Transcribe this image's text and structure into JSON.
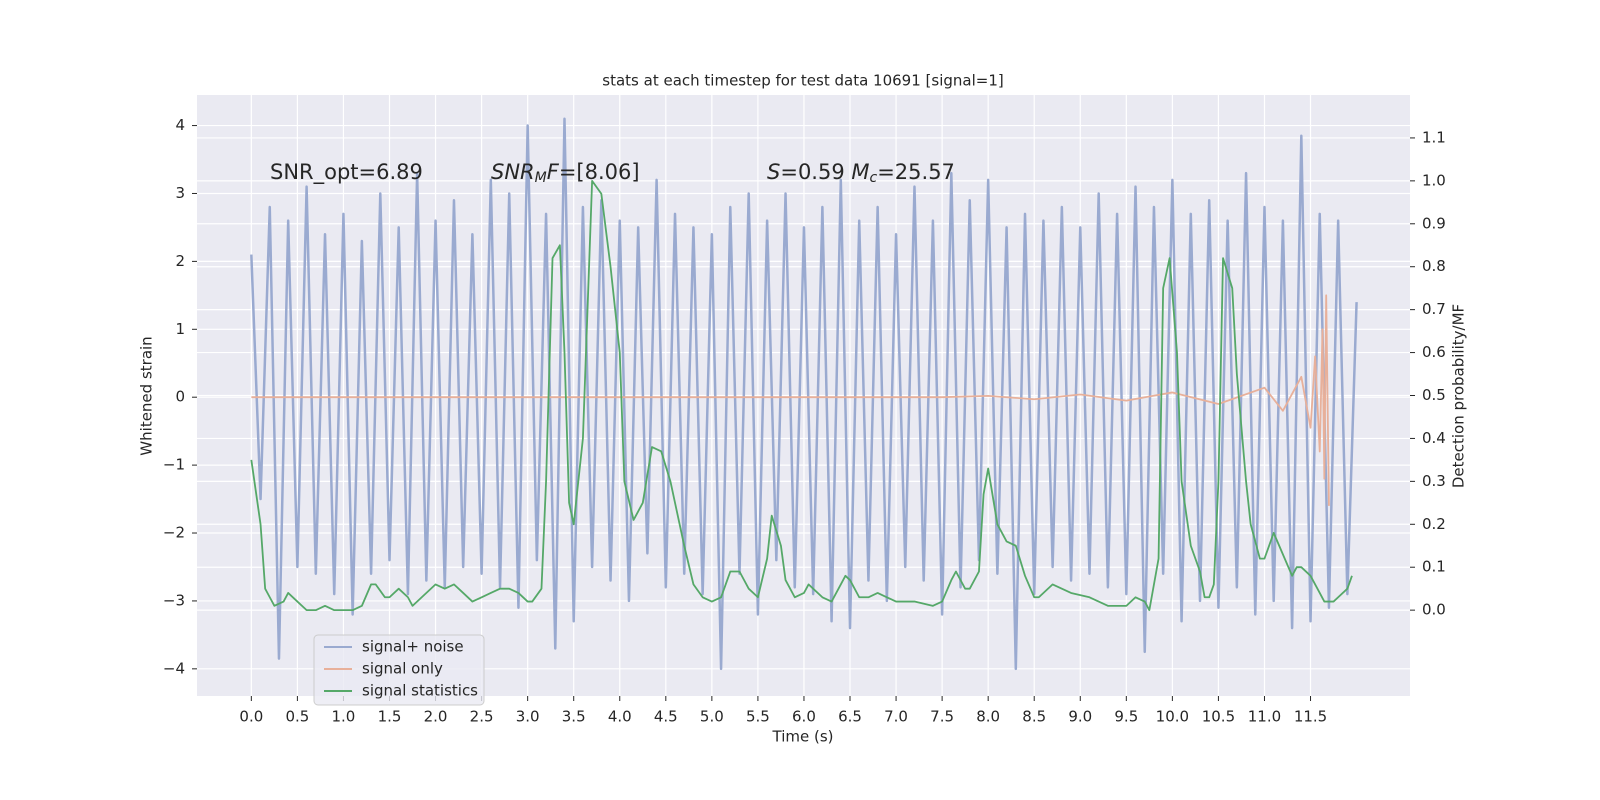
{
  "chart_data": {
    "type": "line",
    "title": "stats at each timestep for test data 10691 [signal=1]",
    "xlabel": "Time (s)",
    "ylabel": "Whitened strain",
    "y2label": "Detection probability/MF",
    "annotations": [
      [
        {
          "text": "SNR_opt=6.89"
        }
      ],
      [
        {
          "text": "SNR",
          "italic": true
        },
        {
          "text": "M",
          "italic": true,
          "sub": true
        },
        {
          "text": "F",
          "italic": true
        },
        {
          "text": "=[8.06]"
        }
      ],
      [
        {
          "text": "S",
          "italic": true
        },
        {
          "text": "=0.59   "
        },
        {
          "text": "M",
          "italic": true
        },
        {
          "text": "c",
          "italic": true,
          "sub": true
        },
        {
          "text": "=25.57"
        }
      ]
    ],
    "xlim": [
      -0.59,
      12.58
    ],
    "ylim": [
      -4.4,
      4.45
    ],
    "y2lim": [
      -0.2,
      1.2
    ],
    "xticks": [
      {
        "value": 0,
        "label": "0.0"
      },
      0.5,
      {
        "value": 1,
        "label": "1.0"
      },
      1.5,
      {
        "value": 2,
        "label": "2.0"
      },
      2.5,
      {
        "value": 3,
        "label": "3.0"
      },
      3.5,
      {
        "value": 4,
        "label": "4.0"
      },
      4.5,
      {
        "value": 5,
        "label": "5.0"
      },
      5.5,
      {
        "value": 6,
        "label": "6.0"
      },
      6.5,
      {
        "value": 7,
        "label": "7.0"
      },
      7.5,
      {
        "value": 8,
        "label": "8.0"
      },
      8.5,
      {
        "value": 9,
        "label": "9.0"
      },
      9.5,
      {
        "value": 10,
        "label": "10.0"
      },
      10.5,
      {
        "value": 11,
        "label": "11.0"
      },
      11.5
    ],
    "yticks": [
      {
        "value": -4,
        "label": "−4"
      },
      {
        "value": -3,
        "label": "−3"
      },
      {
        "value": -2,
        "label": "−2"
      },
      {
        "value": -1,
        "label": "−1"
      },
      0,
      1,
      2,
      3,
      4
    ],
    "y2ticks": [
      {
        "value": 0,
        "label": "0.0"
      },
      0.1,
      0.2,
      0.3,
      0.4,
      0.5,
      0.6,
      0.7,
      0.8,
      0.9,
      {
        "value": 1,
        "label": "1.0"
      },
      1.1
    ],
    "grid": true,
    "legend": "lower left",
    "series": [
      {
        "name": "signal+ noise",
        "color": "#9aaad0",
        "x": [
          0.0,
          0.1,
          0.2,
          0.3,
          0.4,
          0.5,
          0.6,
          0.7,
          0.8,
          0.9,
          1.0,
          1.1,
          1.2,
          1.3,
          1.4,
          1.5,
          1.6,
          1.7,
          1.8,
          1.9,
          2.0,
          2.1,
          2.2,
          2.3,
          2.4,
          2.5,
          2.6,
          2.7,
          2.8,
          2.9,
          3.0,
          3.1,
          3.2,
          3.3,
          3.4,
          3.5,
          3.6,
          3.7,
          3.8,
          3.9,
          4.0,
          4.1,
          4.2,
          4.3,
          4.4,
          4.5,
          4.6,
          4.7,
          4.8,
          4.9,
          5.0,
          5.1,
          5.2,
          5.3,
          5.4,
          5.5,
          5.6,
          5.7,
          5.8,
          5.9,
          6.0,
          6.1,
          6.2,
          6.3,
          6.4,
          6.5,
          6.6,
          6.7,
          6.8,
          6.9,
          7.0,
          7.1,
          7.2,
          7.3,
          7.4,
          7.5,
          7.6,
          7.7,
          7.8,
          7.9,
          8.0,
          8.1,
          8.2,
          8.3,
          8.4,
          8.5,
          8.6,
          8.7,
          8.8,
          8.9,
          9.0,
          9.1,
          9.2,
          9.3,
          9.4,
          9.5,
          9.6,
          9.7,
          9.8,
          9.9,
          10.0,
          10.1,
          10.2,
          10.3,
          10.4,
          10.5,
          10.6,
          10.7,
          10.8,
          10.9,
          11.0,
          11.1,
          11.2,
          11.3,
          11.4,
          11.5,
          11.6,
          11.7,
          11.8,
          11.9,
          12.0
        ],
        "values": [
          2.1,
          -1.5,
          2.8,
          -3.85,
          2.6,
          -2.5,
          3.1,
          -2.6,
          2.4,
          -2.9,
          2.7,
          -3.2,
          2.3,
          -2.6,
          3.0,
          -2.4,
          2.5,
          -2.9,
          3.3,
          -2.7,
          2.6,
          -2.8,
          2.9,
          -2.5,
          2.4,
          -2.6,
          3.2,
          -2.8,
          3.0,
          -3.1,
          4.0,
          -2.4,
          2.7,
          -3.7,
          4.1,
          -3.3,
          2.8,
          -2.5,
          2.9,
          -2.7,
          2.6,
          -3.0,
          2.5,
          -2.3,
          3.2,
          -2.8,
          2.7,
          -2.6,
          2.5,
          -2.9,
          2.4,
          -4.0,
          2.8,
          -2.6,
          3.0,
          -3.2,
          2.6,
          -2.4,
          3.0,
          -2.8,
          2.5,
          -2.9,
          2.8,
          -3.3,
          3.2,
          -3.4,
          2.6,
          -2.7,
          2.8,
          -3.0,
          2.4,
          -2.5,
          3.1,
          -2.7,
          2.6,
          -3.2,
          3.3,
          -2.8,
          2.9,
          -2.4,
          3.2,
          -2.6,
          2.5,
          -4.0,
          2.7,
          -2.9,
          2.6,
          -2.5,
          2.8,
          -2.7,
          2.5,
          -2.6,
          3.0,
          -2.8,
          2.7,
          -2.9,
          3.1,
          -3.75,
          2.8,
          -2.6,
          3.2,
          -3.3,
          2.7,
          -3.0,
          2.9,
          -3.1,
          2.6,
          -2.8,
          3.3,
          -3.2,
          2.8,
          -3.0,
          2.6,
          -3.4,
          3.85,
          -3.3,
          2.7,
          -3.1,
          2.6,
          -2.9,
          1.4
        ]
      },
      {
        "name": "signal only",
        "color": "#e8b09a",
        "x": [
          0.0,
          7.5,
          8.0,
          8.5,
          9.0,
          9.5,
          10.0,
          10.5,
          11.0,
          11.2,
          11.4,
          11.5,
          11.55,
          11.6,
          11.63,
          11.65,
          11.67,
          11.7
        ],
        "values": [
          0,
          0,
          0.02,
          -0.03,
          0.04,
          -0.05,
          0.07,
          -0.1,
          0.14,
          -0.2,
          0.3,
          -0.45,
          0.6,
          -0.8,
          1.0,
          -1.2,
          1.5,
          -1.6
        ]
      },
      {
        "name": "signal statistics",
        "color": "#55a868",
        "axis": "y2",
        "x": [
          0.0,
          0.1,
          0.15,
          0.2,
          0.25,
          0.35,
          0.4,
          0.5,
          0.6,
          0.7,
          0.8,
          0.9,
          1.0,
          1.1,
          1.2,
          1.3,
          1.35,
          1.45,
          1.5,
          1.6,
          1.7,
          1.75,
          1.85,
          2.0,
          2.1,
          2.2,
          2.3,
          2.4,
          2.5,
          2.6,
          2.7,
          2.8,
          2.9,
          3.0,
          3.05,
          3.15,
          3.2,
          3.27,
          3.35,
          3.4,
          3.45,
          3.5,
          3.6,
          3.7,
          3.8,
          3.9,
          4.0,
          4.05,
          4.15,
          4.25,
          4.35,
          4.45,
          4.55,
          4.7,
          4.8,
          4.9,
          5.0,
          5.1,
          5.2,
          5.3,
          5.4,
          5.5,
          5.6,
          5.65,
          5.75,
          5.8,
          5.9,
          6.0,
          6.05,
          6.1,
          6.2,
          6.3,
          6.4,
          6.45,
          6.5,
          6.6,
          6.7,
          6.8,
          6.9,
          7.0,
          7.2,
          7.4,
          7.5,
          7.6,
          7.65,
          7.75,
          7.8,
          7.9,
          7.95,
          8.0,
          8.1,
          8.2,
          8.3,
          8.4,
          8.5,
          8.55,
          8.7,
          8.8,
          8.9,
          9.1,
          9.2,
          9.3,
          9.5,
          9.6,
          9.7,
          9.75,
          9.85,
          9.9,
          9.97,
          10.05,
          10.1,
          10.2,
          10.3,
          10.35,
          10.4,
          10.45,
          10.5,
          10.55,
          10.65,
          10.7,
          10.8,
          10.85,
          10.95,
          11.0,
          11.1,
          11.2,
          11.3,
          11.35,
          11.4,
          11.5,
          11.6,
          11.65,
          11.75,
          11.8,
          11.9,
          11.95
        ],
        "values": [
          0.35,
          0.2,
          0.05,
          0.03,
          0.01,
          0.02,
          0.04,
          0.02,
          0.0,
          0.0,
          0.01,
          0.0,
          0.0,
          0.0,
          0.01,
          0.06,
          0.06,
          0.03,
          0.03,
          0.05,
          0.03,
          0.01,
          0.03,
          0.06,
          0.05,
          0.06,
          0.04,
          0.02,
          0.03,
          0.04,
          0.05,
          0.05,
          0.04,
          0.02,
          0.02,
          0.05,
          0.3,
          0.82,
          0.85,
          0.6,
          0.25,
          0.2,
          0.4,
          1.0,
          0.97,
          0.8,
          0.6,
          0.3,
          0.21,
          0.25,
          0.38,
          0.37,
          0.3,
          0.15,
          0.06,
          0.03,
          0.02,
          0.03,
          0.09,
          0.09,
          0.05,
          0.03,
          0.12,
          0.22,
          0.15,
          0.07,
          0.03,
          0.04,
          0.06,
          0.05,
          0.03,
          0.02,
          0.06,
          0.08,
          0.07,
          0.03,
          0.03,
          0.04,
          0.03,
          0.02,
          0.02,
          0.01,
          0.02,
          0.07,
          0.09,
          0.05,
          0.05,
          0.09,
          0.27,
          0.33,
          0.2,
          0.16,
          0.15,
          0.08,
          0.03,
          0.03,
          0.06,
          0.05,
          0.04,
          0.03,
          0.02,
          0.01,
          0.01,
          0.03,
          0.02,
          0.0,
          0.12,
          0.75,
          0.82,
          0.6,
          0.3,
          0.15,
          0.09,
          0.03,
          0.03,
          0.06,
          0.3,
          0.82,
          0.75,
          0.55,
          0.3,
          0.2,
          0.12,
          0.12,
          0.18,
          0.13,
          0.08,
          0.1,
          0.1,
          0.08,
          0.04,
          0.02,
          0.02,
          0.03,
          0.05,
          0.08
        ]
      }
    ]
  }
}
